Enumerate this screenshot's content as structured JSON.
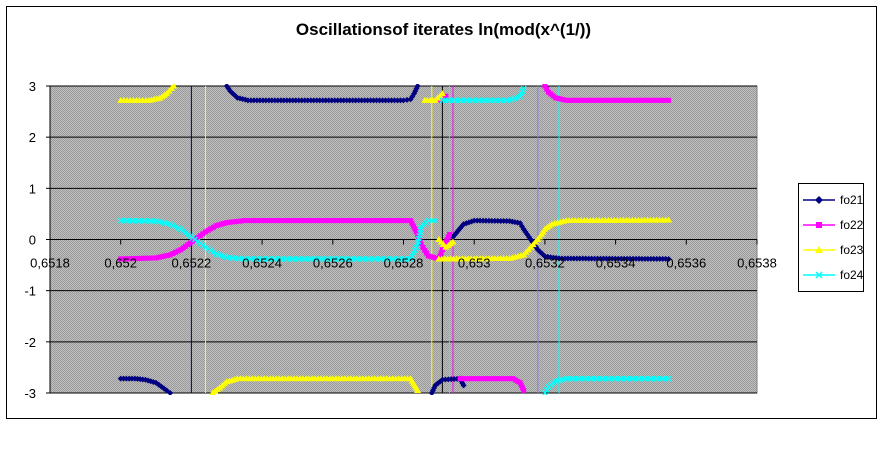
{
  "chart_data": {
    "type": "scatter",
    "title": "Oscillationsof iterates ln(mod(x^(1/))",
    "xlim": [
      0.6518,
      0.6538
    ],
    "ylim": [
      -3,
      3
    ],
    "x_ticks": [
      0.6518,
      0.652,
      0.6522,
      0.6524,
      0.6526,
      0.6528,
      0.653,
      0.6532,
      0.6534,
      0.6536,
      0.6538
    ],
    "x_tick_labels": [
      "0,6518",
      "0,652",
      "0,6522",
      "0,6524",
      "0,6526",
      "0,6528",
      "0,653",
      "0,6532",
      "0,6534",
      "0,6536",
      "0,6538"
    ],
    "y_ticks": [
      -3,
      -2,
      -1,
      0,
      1,
      2,
      3
    ],
    "y_tick_labels": [
      "-3",
      "-2",
      "-1",
      "0",
      "1",
      "2",
      "3"
    ],
    "grid": true,
    "legend_position": "right",
    "series": [
      {
        "name": "fo21",
        "color": "#000080",
        "marker": "diamond",
        "segments": [
          [
            [
              0.652,
              -2.72
            ],
            [
              0.65204,
              -2.72
            ],
            [
              0.65207,
              -2.74
            ],
            [
              0.6521,
              -2.8
            ],
            [
              0.65213,
              -2.95
            ],
            [
              0.65214,
              -3.0
            ]
          ],
          [
            [
              0.6523,
              3.0
            ],
            [
              0.65231,
              2.9
            ],
            [
              0.65233,
              2.77
            ],
            [
              0.65236,
              2.72
            ],
            [
              0.6528,
              2.72
            ],
            [
              0.65282,
              2.74
            ],
            [
              0.65283,
              2.85
            ],
            [
              0.65284,
              3.0
            ]
          ],
          [
            [
              0.65288,
              -3.0
            ],
            [
              0.65289,
              -2.85
            ],
            [
              0.65291,
              -2.74
            ],
            [
              0.65296,
              -2.72
            ],
            [
              0.65297,
              -2.85
            ]
          ],
          [
            [
              0.65294,
              0.05
            ],
            [
              0.65297,
              0.3
            ],
            [
              0.653,
              0.37
            ],
            [
              0.6531,
              0.36
            ],
            [
              0.65313,
              0.32
            ],
            [
              0.65314,
              0.2
            ],
            [
              0.65316,
              0.0
            ],
            [
              0.65318,
              -0.2
            ],
            [
              0.6532,
              -0.33
            ],
            [
              0.65324,
              -0.37
            ],
            [
              0.65355,
              -0.38
            ]
          ]
        ]
      },
      {
        "name": "fo22",
        "color": "#ff00ff",
        "marker": "square",
        "segments": [
          [
            [
              0.652,
              -0.38
            ],
            [
              0.6521,
              -0.36
            ],
            [
              0.65214,
              -0.3
            ],
            [
              0.65217,
              -0.2
            ],
            [
              0.65219,
              -0.1
            ],
            [
              0.65221,
              0.0
            ],
            [
              0.65224,
              0.15
            ],
            [
              0.65227,
              0.27
            ],
            [
              0.6523,
              0.33
            ],
            [
              0.65235,
              0.37
            ],
            [
              0.65282,
              0.37
            ],
            [
              0.65284,
              0.1
            ],
            [
              0.65285,
              -0.1
            ],
            [
              0.65287,
              -0.32
            ],
            [
              0.6529,
              -0.38
            ],
            [
              0.65291,
              -0.2
            ],
            [
              0.65293,
              0.1
            ]
          ],
          [
            [
              0.6529,
              2.72
            ],
            [
              0.65292,
              2.8
            ]
          ],
          [
            [
              0.65296,
              -2.72
            ],
            [
              0.65311,
              -2.72
            ],
            [
              0.65313,
              -2.8
            ],
            [
              0.65314,
              -2.95
            ]
          ],
          [
            [
              0.6532,
              3.0
            ],
            [
              0.65321,
              2.88
            ],
            [
              0.65323,
              2.77
            ],
            [
              0.65326,
              2.72
            ],
            [
              0.65355,
              2.72
            ]
          ]
        ]
      },
      {
        "name": "fo23",
        "color": "#ffff00",
        "marker": "triangle",
        "segments": [
          [
            [
              0.652,
              2.72
            ],
            [
              0.65208,
              2.72
            ],
            [
              0.65211,
              2.76
            ],
            [
              0.65213,
              2.85
            ],
            [
              0.65215,
              3.0
            ]
          ],
          [
            [
              0.65226,
              -3.0
            ],
            [
              0.65228,
              -2.9
            ],
            [
              0.6523,
              -2.78
            ],
            [
              0.65233,
              -2.72
            ],
            [
              0.65282,
              -2.72
            ],
            [
              0.65284,
              -2.95
            ]
          ],
          [
            [
              0.65286,
              2.72
            ],
            [
              0.65289,
              2.72
            ],
            [
              0.65291,
              2.85
            ]
          ],
          [
            [
              0.6529,
              0.0
            ],
            [
              0.65292,
              -0.15
            ],
            [
              0.65294,
              -0.05
            ]
          ],
          [
            [
              0.6529,
              -0.38
            ],
            [
              0.6531,
              -0.37
            ],
            [
              0.65314,
              -0.3
            ],
            [
              0.65316,
              -0.15
            ],
            [
              0.65318,
              0.0
            ],
            [
              0.6532,
              0.2
            ],
            [
              0.65322,
              0.3
            ],
            [
              0.65326,
              0.37
            ],
            [
              0.65355,
              0.38
            ]
          ]
        ]
      },
      {
        "name": "fo24",
        "color": "#00ffff",
        "marker": "x",
        "segments": [
          [
            [
              0.652,
              0.37
            ],
            [
              0.6521,
              0.36
            ],
            [
              0.65214,
              0.3
            ],
            [
              0.65217,
              0.2
            ],
            [
              0.65219,
              0.1
            ],
            [
              0.65221,
              0.0
            ],
            [
              0.65224,
              -0.15
            ],
            [
              0.65227,
              -0.28
            ],
            [
              0.6523,
              -0.35
            ],
            [
              0.65235,
              -0.38
            ],
            [
              0.65282,
              -0.38
            ],
            [
              0.65284,
              -0.1
            ],
            [
              0.65285,
              0.25
            ],
            [
              0.65287,
              0.37
            ],
            [
              0.65289,
              0.37
            ]
          ],
          [
            [
              0.65291,
              2.72
            ],
            [
              0.65303,
              2.72
            ],
            [
              0.6531,
              2.72
            ],
            [
              0.65313,
              2.8
            ],
            [
              0.65314,
              2.95
            ]
          ],
          [
            [
              0.6532,
              -3.0
            ],
            [
              0.65321,
              -2.88
            ],
            [
              0.65323,
              -2.77
            ],
            [
              0.65326,
              -2.72
            ],
            [
              0.65355,
              -2.72
            ]
          ]
        ]
      }
    ],
    "vertical_lines": [
      {
        "x": 0.6522,
        "color": "#000080"
      },
      {
        "x": 0.65224,
        "color": "#ffff00"
      },
      {
        "x": 0.65288,
        "color": "#ffff00"
      },
      {
        "x": 0.65291,
        "color": "#000000"
      },
      {
        "x": 0.65293,
        "color": "#00ffff"
      },
      {
        "x": 0.65294,
        "color": "#ff00ff"
      },
      {
        "x": 0.65318,
        "color": "#8080ff"
      },
      {
        "x": 0.65324,
        "color": "#00ffff"
      }
    ]
  }
}
